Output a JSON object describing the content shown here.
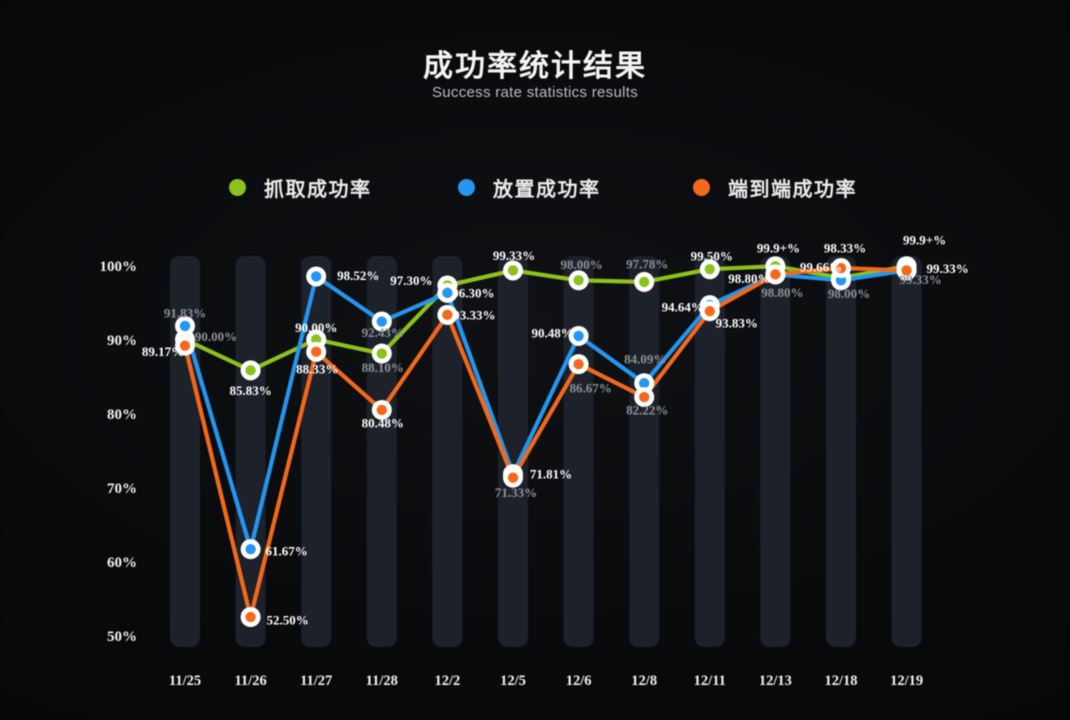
{
  "chart_data": {
    "type": "line",
    "title": "成功率统计结果",
    "subtitle": "Success rate statistics results",
    "categories": [
      "11/25",
      "11/26",
      "11/27",
      "11/28",
      "12/2",
      "12/5",
      "12/6",
      "12/8",
      "12/11",
      "12/13",
      "12/18",
      "12/19"
    ],
    "y_tick_labels": [
      "100%",
      "90%",
      "80%",
      "70%",
      "60%",
      "50%"
    ],
    "y_tick_values": [
      100,
      90,
      80,
      70,
      60,
      50
    ],
    "ylim": [
      50,
      100
    ],
    "grid": false,
    "legend_position": "top",
    "background_color": "#0a0b0d",
    "bar_color": "#1d212a",
    "series": [
      {
        "name": "抓取成功率",
        "color": "#8dc21e",
        "values": [
          90.0,
          85.83,
          90.0,
          88.1,
          97.3,
          99.33,
          98.0,
          97.78,
          99.5,
          99.9,
          98.33,
          99.9
        ],
        "point_labels": [
          {
            "text": "90.00%",
            "dx": 31,
            "dy": -3,
            "dim": true
          },
          {
            "text": "85.83%",
            "dx": 0,
            "dy": 20,
            "dim": false
          },
          {
            "text": "90.00%",
            "dx": 0,
            "dy": -12,
            "dim": false
          },
          {
            "text": "88.10%",
            "dx": 1,
            "dy": 14,
            "dim": true
          },
          {
            "text": "97.30%",
            "dx": -36,
            "dy": -5,
            "dim": false
          },
          {
            "text": "99.33%",
            "dx": 1,
            "dy": -15,
            "dim": false
          },
          {
            "text": "98.00%",
            "dx": 3,
            "dy": -16,
            "dim": true
          },
          {
            "text": "97.78%",
            "dx": 3,
            "dy": -18,
            "dim": true
          },
          {
            "text": "99.50%",
            "dx": 2,
            "dy": -13,
            "dim": false
          },
          {
            "text": "99.9+%",
            "dx": 3,
            "dy": -18,
            "dim": false
          },
          {
            "text": "98.33%",
            "dx": 4,
            "dy": -30,
            "dim": false
          },
          {
            "text": "99.9+%",
            "dx": 18,
            "dy": -26,
            "dim": false
          }
        ]
      },
      {
        "name": "放置成功率",
        "color": "#2496ef",
        "values": [
          91.83,
          61.67,
          98.52,
          92.43,
          96.3,
          71.81,
          90.48,
          84.09,
          94.64,
          98.8,
          98.0,
          99.33
        ],
        "point_labels": [
          {
            "text": "91.83%",
            "dx": 0,
            "dy": -13,
            "dim": true
          },
          {
            "text": "61.67%",
            "dx": 36,
            "dy": 2,
            "dim": false
          },
          {
            "text": "98.52%",
            "dx": 42,
            "dy": -1,
            "dim": false
          },
          {
            "text": "92.43%",
            "dx": 1,
            "dy": 11,
            "dim": true
          },
          {
            "text": "96.30%",
            "dx": 26,
            "dy": 0,
            "dim": false
          },
          {
            "text": "71.81%",
            "dx": 38,
            "dy": 0,
            "dim": false
          },
          {
            "text": "90.48%",
            "dx": -26,
            "dy": -3,
            "dim": false
          },
          {
            "text": "84.09%",
            "dx": 1,
            "dy": -24,
            "dim": true
          },
          {
            "text": "94.64%",
            "dx": -27,
            "dy": 2,
            "dim": false
          },
          {
            "text": "98.80%",
            "dx": -26,
            "dy": 4,
            "dim": false
          },
          {
            "text": "98.00%",
            "dx": 8,
            "dy": 13,
            "dim": true
          },
          {
            "text": "99.33%",
            "dx": 41,
            "dy": -2,
            "dim": false
          }
        ]
      },
      {
        "name": "端到端成功率",
        "color": "#f3691c",
        "values": [
          89.17,
          52.5,
          88.33,
          80.48,
          93.33,
          71.33,
          86.67,
          82.22,
          93.83,
          98.8,
          99.66,
          99.33
        ],
        "point_labels": [
          {
            "text": "89.17%",
            "dx": -22,
            "dy": 6,
            "dim": false
          },
          {
            "text": "52.50%",
            "dx": 37,
            "dy": 3,
            "dim": false
          },
          {
            "text": "88.33%",
            "dx": 1,
            "dy": 17,
            "dim": false
          },
          {
            "text": "80.48%",
            "dx": 1,
            "dy": 13,
            "dim": false
          },
          {
            "text": "93.33%",
            "dx": 27,
            "dy": 0,
            "dim": false
          },
          {
            "text": "71.33%",
            "dx": 3,
            "dy": 15,
            "dim": true
          },
          {
            "text": "86.67%",
            "dx": 12,
            "dy": 24,
            "dim": true
          },
          {
            "text": "82.22%",
            "dx": 3,
            "dy": 13,
            "dim": true
          },
          {
            "text": "93.83%",
            "dx": 27,
            "dy": 12,
            "dim": false
          },
          {
            "text": "98.80%",
            "dx": 7,
            "dy": 18,
            "dim": true
          },
          {
            "text": "99.66%",
            "dx": -20,
            "dy": -1,
            "dim": false
          },
          {
            "text": "99.33%",
            "dx": 14,
            "dy": 9,
            "dim": true
          }
        ]
      }
    ]
  }
}
